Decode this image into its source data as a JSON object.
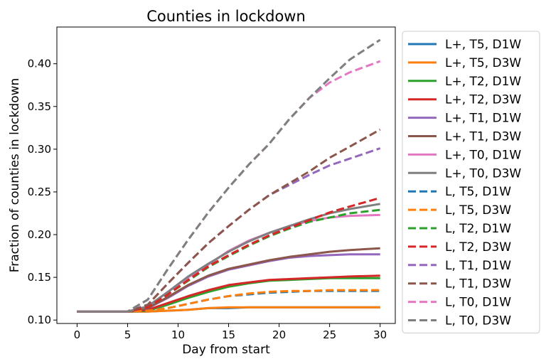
{
  "chart_data": {
    "type": "line",
    "title": "Counties in lockdown",
    "xlabel": "Day from start",
    "ylabel": "Fraction of counties in lockdown",
    "xlim": [
      -2,
      31.5
    ],
    "ylim": [
      0.096,
      0.443
    ],
    "xticks": [
      "0",
      "5",
      "10",
      "15",
      "20",
      "25",
      "30"
    ],
    "yticks": [
      "0.10",
      "0.15",
      "0.20",
      "0.25",
      "0.30",
      "0.35",
      "0.40"
    ],
    "grid": false,
    "legend_position": "outside-right",
    "x": [
      0,
      5,
      7,
      9,
      11,
      13,
      15,
      17,
      19,
      21,
      23,
      25,
      27,
      30
    ],
    "series": [
      {
        "name": "L+, T5, D1W",
        "color": "#1f77b4",
        "dash": "solid",
        "values": [
          0.11,
          0.11,
          0.11,
          0.111,
          0.112,
          0.114,
          0.114,
          0.115,
          0.115,
          0.115,
          0.115,
          0.115,
          0.115,
          0.115
        ]
      },
      {
        "name": "L+, T5, D3W",
        "color": "#ff7f0e",
        "dash": "solid",
        "values": [
          0.11,
          0.11,
          0.11,
          0.111,
          0.112,
          0.114,
          0.115,
          0.115,
          0.115,
          0.115,
          0.115,
          0.115,
          0.115,
          0.115
        ]
      },
      {
        "name": "L+, T2, D1W",
        "color": "#2ca02c",
        "dash": "solid",
        "values": [
          0.11,
          0.11,
          0.111,
          0.118,
          0.126,
          0.133,
          0.139,
          0.143,
          0.146,
          0.147,
          0.148,
          0.149,
          0.149,
          0.149
        ]
      },
      {
        "name": "L+, T2, D3W",
        "color": "#d62728",
        "dash": "solid",
        "values": [
          0.11,
          0.11,
          0.112,
          0.12,
          0.128,
          0.135,
          0.141,
          0.144,
          0.147,
          0.148,
          0.149,
          0.15,
          0.151,
          0.152
        ]
      },
      {
        "name": "L+, T1, D1W",
        "color": "#9467bd",
        "dash": "solid",
        "values": [
          0.11,
          0.11,
          0.114,
          0.126,
          0.14,
          0.151,
          0.159,
          0.164,
          0.169,
          0.173,
          0.175,
          0.176,
          0.177,
          0.177
        ]
      },
      {
        "name": "L+, T1, D3W",
        "color": "#8c564b",
        "dash": "solid",
        "values": [
          0.11,
          0.11,
          0.114,
          0.127,
          0.141,
          0.152,
          0.16,
          0.165,
          0.17,
          0.174,
          0.177,
          0.18,
          0.182,
          0.184
        ]
      },
      {
        "name": "L+, T0, D1W",
        "color": "#e377c2",
        "dash": "solid",
        "values": [
          0.11,
          0.11,
          0.116,
          0.133,
          0.15,
          0.165,
          0.181,
          0.193,
          0.202,
          0.21,
          0.216,
          0.22,
          0.222,
          0.223
        ]
      },
      {
        "name": "L+, T0, D3W",
        "color": "#7f7f7f",
        "dash": "solid",
        "values": [
          0.11,
          0.11,
          0.116,
          0.133,
          0.151,
          0.166,
          0.18,
          0.192,
          0.202,
          0.21,
          0.218,
          0.225,
          0.23,
          0.236
        ]
      },
      {
        "name": "L, T5, D1W",
        "color": "#1f77b4",
        "dash": "dashed",
        "values": [
          0.11,
          0.11,
          0.111,
          0.114,
          0.119,
          0.124,
          0.128,
          0.13,
          0.132,
          0.133,
          0.134,
          0.134,
          0.134,
          0.134
        ]
      },
      {
        "name": "L, T5, D3W",
        "color": "#ff7f0e",
        "dash": "dashed",
        "values": [
          0.11,
          0.11,
          0.111,
          0.114,
          0.119,
          0.124,
          0.128,
          0.131,
          0.133,
          0.134,
          0.134,
          0.135,
          0.135,
          0.135
        ]
      },
      {
        "name": "L, T2, D1W",
        "color": "#2ca02c",
        "dash": "dashed",
        "values": [
          0.11,
          0.11,
          0.115,
          0.13,
          0.146,
          0.162,
          0.175,
          0.187,
          0.198,
          0.207,
          0.215,
          0.22,
          0.225,
          0.229
        ]
      },
      {
        "name": "L, T2, D3W",
        "color": "#d62728",
        "dash": "dashed",
        "values": [
          0.11,
          0.11,
          0.115,
          0.13,
          0.147,
          0.163,
          0.176,
          0.188,
          0.199,
          0.208,
          0.217,
          0.226,
          0.233,
          0.243
        ]
      },
      {
        "name": "L, T1, D1W",
        "color": "#9467bd",
        "dash": "dashed",
        "values": [
          0.11,
          0.11,
          0.118,
          0.143,
          0.167,
          0.19,
          0.21,
          0.229,
          0.246,
          0.258,
          0.27,
          0.281,
          0.289,
          0.301
        ]
      },
      {
        "name": "L, T1, D3W",
        "color": "#8c564b",
        "dash": "dashed",
        "values": [
          0.11,
          0.11,
          0.118,
          0.143,
          0.167,
          0.19,
          0.21,
          0.229,
          0.246,
          0.26,
          0.274,
          0.29,
          0.303,
          0.323
        ]
      },
      {
        "name": "L, T0, D1W",
        "color": "#e377c2",
        "dash": "dashed",
        "values": [
          0.11,
          0.11,
          0.124,
          0.16,
          0.194,
          0.226,
          0.255,
          0.282,
          0.306,
          0.335,
          0.36,
          0.378,
          0.39,
          0.403
        ]
      },
      {
        "name": "L, T0, D3W",
        "color": "#7f7f7f",
        "dash": "dashed",
        "values": [
          0.11,
          0.11,
          0.124,
          0.16,
          0.194,
          0.226,
          0.255,
          0.282,
          0.306,
          0.335,
          0.36,
          0.383,
          0.405,
          0.428
        ]
      }
    ]
  }
}
